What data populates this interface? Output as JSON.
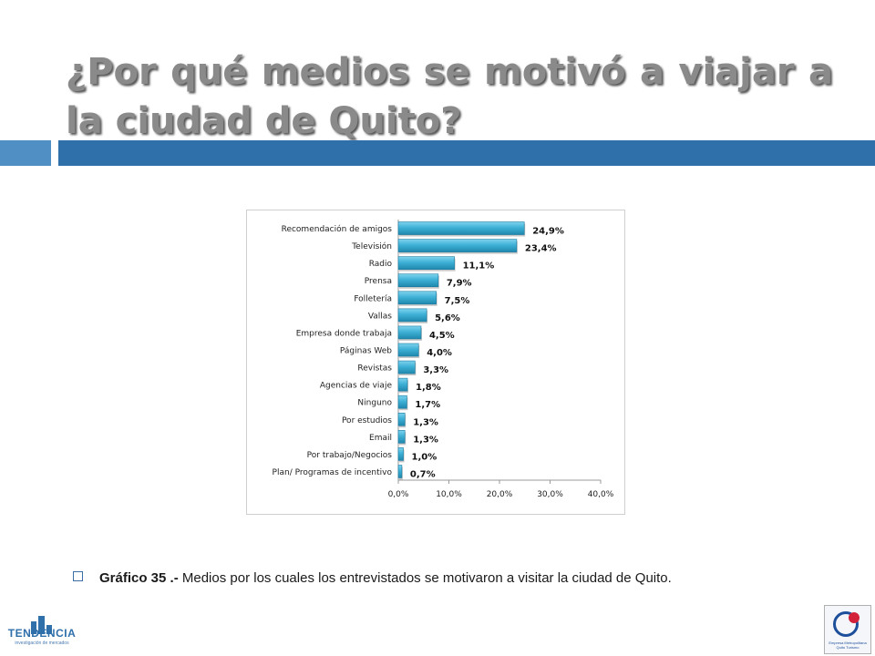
{
  "title": "¿Por qué medios se motivó a viajar a la ciudad de Quito?",
  "caption": {
    "label": "Gráfico 35 .-",
    "text": " Medios por los cuales los entrevistados se motivaron a visitar la ciudad de Quito."
  },
  "logo_left": {
    "name": "TENDENCIA",
    "tagline": "investigación de mercados"
  },
  "logo_right": {
    "text": "Empresa Metropolitana Quito Turismo"
  },
  "colors": {
    "bar": "#3fb1d6",
    "bar_dark": "#1f87ad",
    "header_bar": "#2f6faa",
    "header_bar_light": "#4f8fc4",
    "title": "#8a8a8a"
  },
  "chart_data": {
    "type": "bar",
    "orientation": "horizontal",
    "categories": [
      "Recomendación de amigos",
      "Televisión",
      "Radio",
      "Prensa",
      "Folletería",
      "Vallas",
      "Empresa donde trabaja",
      "Páginas Web",
      "Revistas",
      "Agencias de viaje",
      "Ninguno",
      "Por estudios",
      "Email",
      "Por trabajo/Negocios",
      "Plan/ Programas de incentivo"
    ],
    "values": [
      24.9,
      23.4,
      11.1,
      7.9,
      7.5,
      5.6,
      4.5,
      4.0,
      3.3,
      1.8,
      1.7,
      1.3,
      1.3,
      1.0,
      0.7
    ],
    "labels": [
      "24,9%",
      "23,4%",
      "11,1%",
      "7,9%",
      "7,5%",
      "5,6%",
      "4,5%",
      "4,0%",
      "3,3%",
      "1,8%",
      "1,7%",
      "1,3%",
      "1,3%",
      "1,0%",
      "0,7%"
    ],
    "xticks": [
      "0,0%",
      "10,0%",
      "20,0%",
      "30,0%",
      "40,0%"
    ],
    "xlim": [
      0,
      40
    ],
    "grid": false,
    "legend": "none"
  }
}
